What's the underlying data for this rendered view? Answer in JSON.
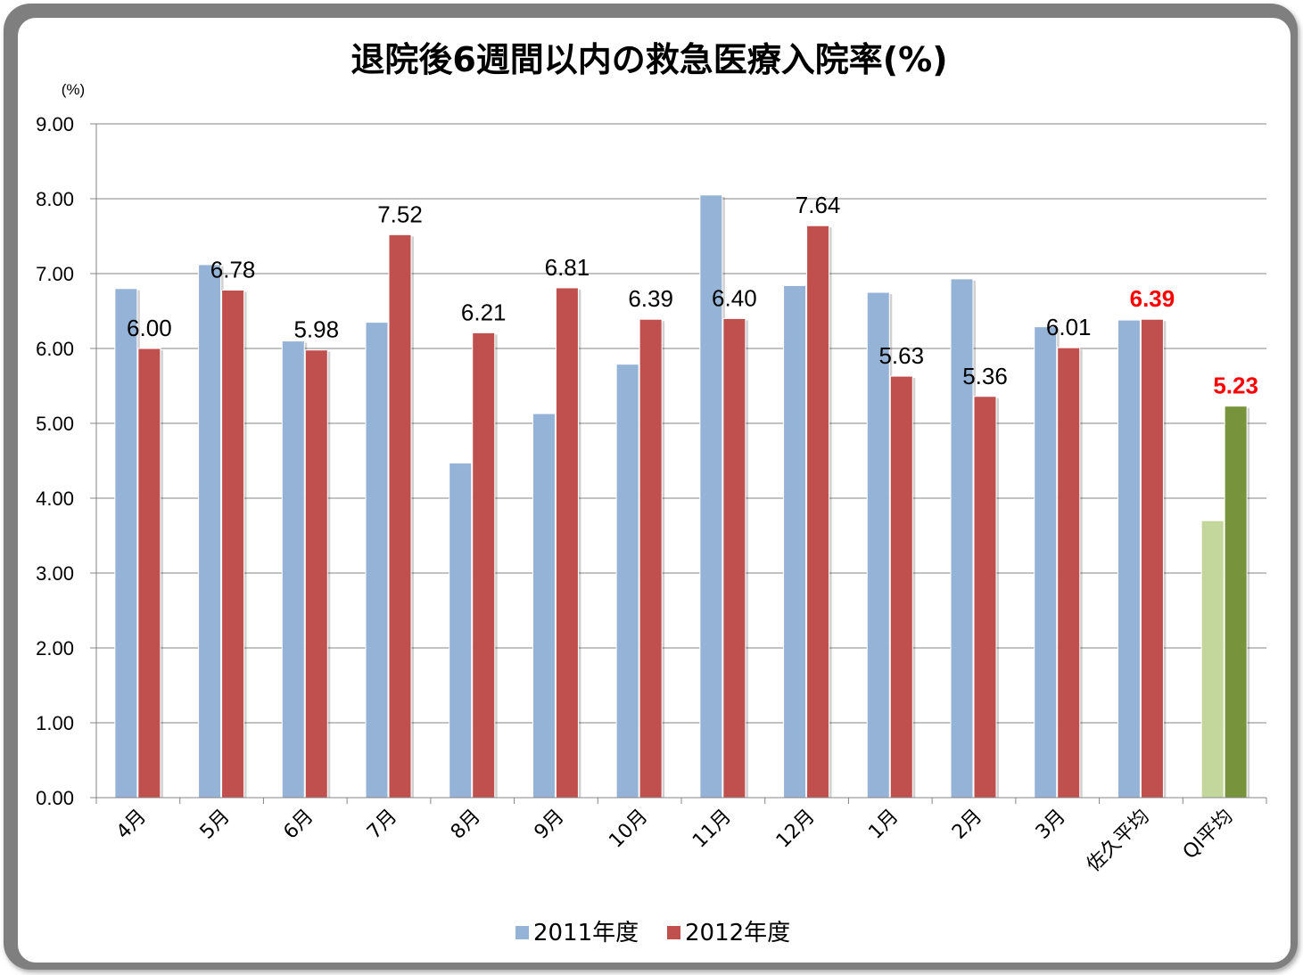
{
  "chart_data": {
    "type": "bar",
    "title": "退院後6週間以内の救急医療入院率(%)",
    "ylabel": "(%)",
    "ylim": [
      0,
      9
    ],
    "yticks": [
      "0.00",
      "1.00",
      "2.00",
      "3.00",
      "4.00",
      "5.00",
      "6.00",
      "7.00",
      "8.00",
      "9.00"
    ],
    "grid": true,
    "legend_position": "bottom",
    "categories": [
      "4月",
      "5月",
      "6月",
      "7月",
      "8月",
      "9月",
      "10月",
      "11月",
      "12月",
      "1月",
      "2月",
      "3月",
      "佐久平均",
      "QI平均"
    ],
    "series": [
      {
        "name": "2011年度",
        "color": "#95b3d7",
        "values": [
          6.8,
          7.12,
          6.1,
          6.35,
          4.47,
          5.13,
          5.79,
          8.05,
          6.84,
          6.75,
          6.93,
          6.29,
          6.38,
          3.7
        ]
      },
      {
        "name": "2012年度",
        "color": "#c0504d",
        "values": [
          6.0,
          6.78,
          5.98,
          7.52,
          6.21,
          6.81,
          6.39,
          6.4,
          7.64,
          5.63,
          5.36,
          6.01,
          6.39,
          5.23
        ]
      }
    ],
    "qi_colors": {
      "2011": "#c3d69b",
      "2012": "#77933c"
    },
    "data_labels": [
      "6.00",
      "6.78",
      "5.98",
      "7.52",
      "6.21",
      "6.81",
      "6.39",
      "6.40",
      "7.64",
      "5.63",
      "5.36",
      "6.01",
      "6.39",
      "5.23"
    ],
    "highlight_label_color": "#ff0000"
  }
}
